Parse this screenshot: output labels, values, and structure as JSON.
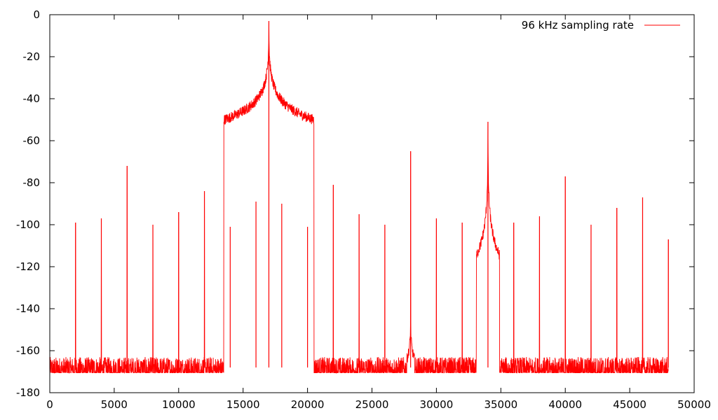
{
  "chart_data": {
    "type": "line",
    "title": "",
    "xlabel": "",
    "ylabel": "",
    "xlim": [
      0,
      50000
    ],
    "ylim": [
      -180,
      0
    ],
    "x_ticks": [
      0,
      5000,
      10000,
      15000,
      20000,
      25000,
      30000,
      35000,
      40000,
      45000,
      50000
    ],
    "y_ticks": [
      0,
      -20,
      -40,
      -60,
      -80,
      -100,
      -120,
      -140,
      -160,
      -180
    ],
    "x_tick_labels": [
      "0",
      "5000",
      "10000",
      "15000",
      "20000",
      "25000",
      "30000",
      "35000",
      "40000",
      "45000",
      "50000"
    ],
    "y_tick_labels": [
      "0",
      "-20",
      "-40",
      "-60",
      "-80",
      "-100",
      "-120",
      "-140",
      "-160",
      "-180"
    ],
    "grid": false,
    "legend_position": "top-right",
    "noise_floor_db": -168,
    "noise_floor_range_db": [
      -178,
      -163
    ],
    "x_max_data": 48000,
    "series": [
      {
        "name": "96 kHz sampling rate",
        "color": "#ff0000",
        "peaks": [
          {
            "x": 2000,
            "y": -99
          },
          {
            "x": 4000,
            "y": -97
          },
          {
            "x": 6000,
            "y": -72
          },
          {
            "x": 8000,
            "y": -100
          },
          {
            "x": 10000,
            "y": -94
          },
          {
            "x": 12000,
            "y": -84
          },
          {
            "x": 14000,
            "y": -101
          },
          {
            "x": 16000,
            "y": -89
          },
          {
            "x": 17000,
            "y": -3
          },
          {
            "x": 18000,
            "y": -90
          },
          {
            "x": 20000,
            "y": -101
          },
          {
            "x": 22000,
            "y": -81
          },
          {
            "x": 24000,
            "y": -95
          },
          {
            "x": 26000,
            "y": -100
          },
          {
            "x": 28000,
            "y": -65
          },
          {
            "x": 30000,
            "y": -97
          },
          {
            "x": 32000,
            "y": -99
          },
          {
            "x": 34000,
            "y": -51
          },
          {
            "x": 36000,
            "y": -99
          },
          {
            "x": 38000,
            "y": -96
          },
          {
            "x": 40000,
            "y": -77
          },
          {
            "x": 42000,
            "y": -100
          },
          {
            "x": 44000,
            "y": -92
          },
          {
            "x": 46000,
            "y": -87
          },
          {
            "x": 48000,
            "y": -107
          }
        ]
      }
    ]
  }
}
